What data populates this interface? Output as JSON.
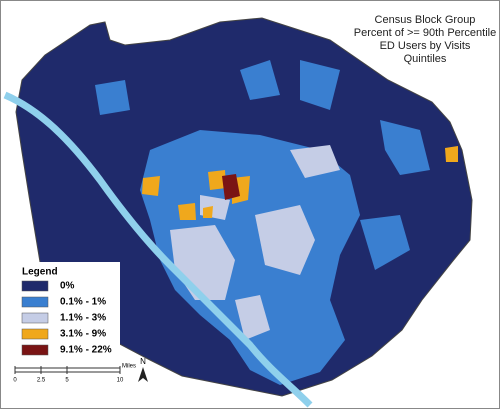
{
  "map": {
    "title": [
      "Census Block Group",
      "Percent of >= 90th Percentile",
      "ED Users by Visits",
      "Quintiles"
    ],
    "legend": {
      "title": "Legend",
      "items": [
        {
          "label": "0%",
          "color": "#1f2a6b"
        },
        {
          "label": "0.1% - 1%",
          "color": "#3a7fd0"
        },
        {
          "label": "1.1% - 3%",
          "color": "#c5cde6"
        },
        {
          "label": "3.1% - 9%",
          "color": "#f0a81c"
        },
        {
          "label": "9.1% - 22%",
          "color": "#7a1414"
        }
      ]
    },
    "scale_bar": {
      "labels": [
        "0",
        "2.5",
        "5",
        "10"
      ],
      "unit": "Miles"
    },
    "north": "N"
  }
}
